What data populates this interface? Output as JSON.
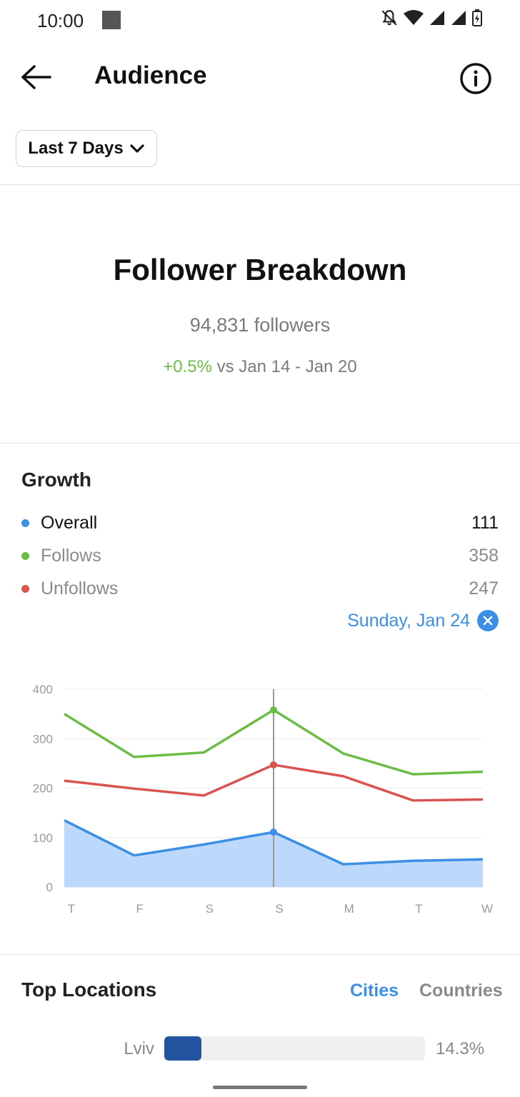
{
  "status_bar": {
    "time": "10:00"
  },
  "header": {
    "title": "Audience",
    "back_icon": "arrow-left-icon",
    "info_icon": "info-icon"
  },
  "filter": {
    "label": "Last 7 Days",
    "icon": "chevron-down-icon"
  },
  "breakdown": {
    "title": "Follower Breakdown",
    "followers": "94,831 followers",
    "change_pct": "+0.5%",
    "change_period": " vs Jan 14 - Jan 20"
  },
  "growth": {
    "title": "Growth",
    "legend": [
      {
        "label": "Overall",
        "value": "111",
        "color": "#3d8fe6"
      },
      {
        "label": "Follows",
        "value": "358",
        "color": "#6bbd45"
      },
      {
        "label": "Unfollows",
        "value": "247",
        "color": "#d9534f"
      }
    ],
    "selected_date": "Sunday, Jan 24"
  },
  "chart_data": {
    "type": "line",
    "x": [
      "T",
      "F",
      "S",
      "S",
      "M",
      "T",
      "W"
    ],
    "y_ticks": [
      "400",
      "300",
      "200",
      "100",
      "0"
    ],
    "ylim": [
      0,
      400
    ],
    "highlight_index": 3,
    "series": [
      {
        "name": "Follows",
        "color": "#6bbd45",
        "values": [
          350,
          263,
          272,
          358,
          270,
          228,
          233
        ]
      },
      {
        "name": "Unfollows",
        "color": "#d9534f",
        "values": [
          215,
          199,
          185,
          247,
          224,
          175,
          177
        ]
      },
      {
        "name": "Overall",
        "color": "#3d8fe6",
        "fill": "#bcd8fa",
        "values": [
          135,
          64,
          86,
          111,
          46,
          53,
          56
        ]
      }
    ]
  },
  "locations": {
    "title": "Top Locations",
    "tabs": [
      "Cities",
      "Countries"
    ],
    "items": [
      {
        "label": "Lviv",
        "percent": "14.3%",
        "fraction": 0.143
      }
    ]
  }
}
